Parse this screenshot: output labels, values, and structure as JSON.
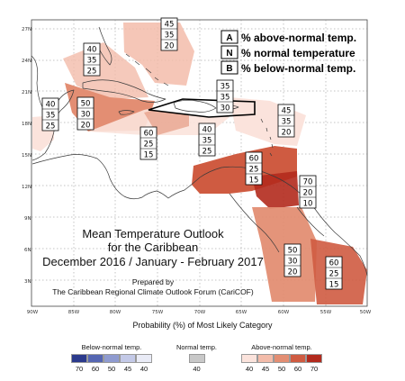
{
  "map": {
    "title_lines": [
      "Mean Temperature Outlook",
      "for the Caribbean",
      "December 2016 / January - February 2017"
    ],
    "prepared_by": "Prepared by",
    "prepared_org": "The Caribbean Regional Climate Outlook Forum (CariCOF)",
    "lat_ticks": [
      "27N",
      "24N",
      "21N",
      "18N",
      "15N",
      "12N",
      "9N",
      "6N",
      "3N"
    ],
    "lon_ticks": [
      "90W",
      "85W",
      "80W",
      "75W",
      "70W",
      "65W",
      "60W",
      "55W",
      "50W"
    ],
    "key": [
      {
        "letter": "A",
        "text": "% above-normal temp."
      },
      {
        "letter": "N",
        "text": "% normal temperature"
      },
      {
        "letter": "B",
        "text": "% below-normal temp."
      }
    ],
    "regions": [
      {
        "name": "bahamas",
        "probs": [
          "45",
          "35",
          "20"
        ]
      },
      {
        "name": "cuba-north",
        "probs": [
          "40",
          "35",
          "25"
        ]
      },
      {
        "name": "belize-central-america",
        "probs": [
          "40",
          "35",
          "25"
        ]
      },
      {
        "name": "jamaica-cayman",
        "probs": [
          "50",
          "30",
          "20"
        ]
      },
      {
        "name": "hispaniola",
        "probs": [
          "35",
          "35",
          "30"
        ]
      },
      {
        "name": "caribbean-sea-central",
        "probs": [
          "60",
          "25",
          "15"
        ]
      },
      {
        "name": "puerto-rico-antilles",
        "probs": [
          "40",
          "35",
          "25"
        ]
      },
      {
        "name": "leeward-windward",
        "probs": [
          "45",
          "35",
          "20"
        ]
      },
      {
        "name": "abc-islands",
        "probs": [
          "60",
          "25",
          "15"
        ]
      },
      {
        "name": "trinidad-tobago",
        "probs": [
          "70",
          "20",
          "10"
        ]
      },
      {
        "name": "guyana",
        "probs": [
          "50",
          "30",
          "20"
        ]
      },
      {
        "name": "suriname-french-guiana",
        "probs": [
          "60",
          "25",
          "15"
        ]
      }
    ]
  },
  "colorbar": {
    "title": "Probability (%) of Most Likely Category",
    "below": {
      "label": "Below-normal temp.",
      "values": [
        "70",
        "60",
        "50",
        "45",
        "40"
      ],
      "colors": [
        "#2b3a8c",
        "#5566b2",
        "#8f9bd0",
        "#c3c9e7",
        "#e9ebf6"
      ]
    },
    "normal": {
      "label": "Normal temp.",
      "values": [
        "40"
      ],
      "colors": [
        "#c8c8c8"
      ]
    },
    "above": {
      "label": "Above-normal temp.",
      "values": [
        "40",
        "45",
        "50",
        "60",
        "70"
      ],
      "colors": [
        "#fbe3dc",
        "#f3bcaa",
        "#e38e73",
        "#cf5b41",
        "#b22a1d"
      ]
    }
  }
}
